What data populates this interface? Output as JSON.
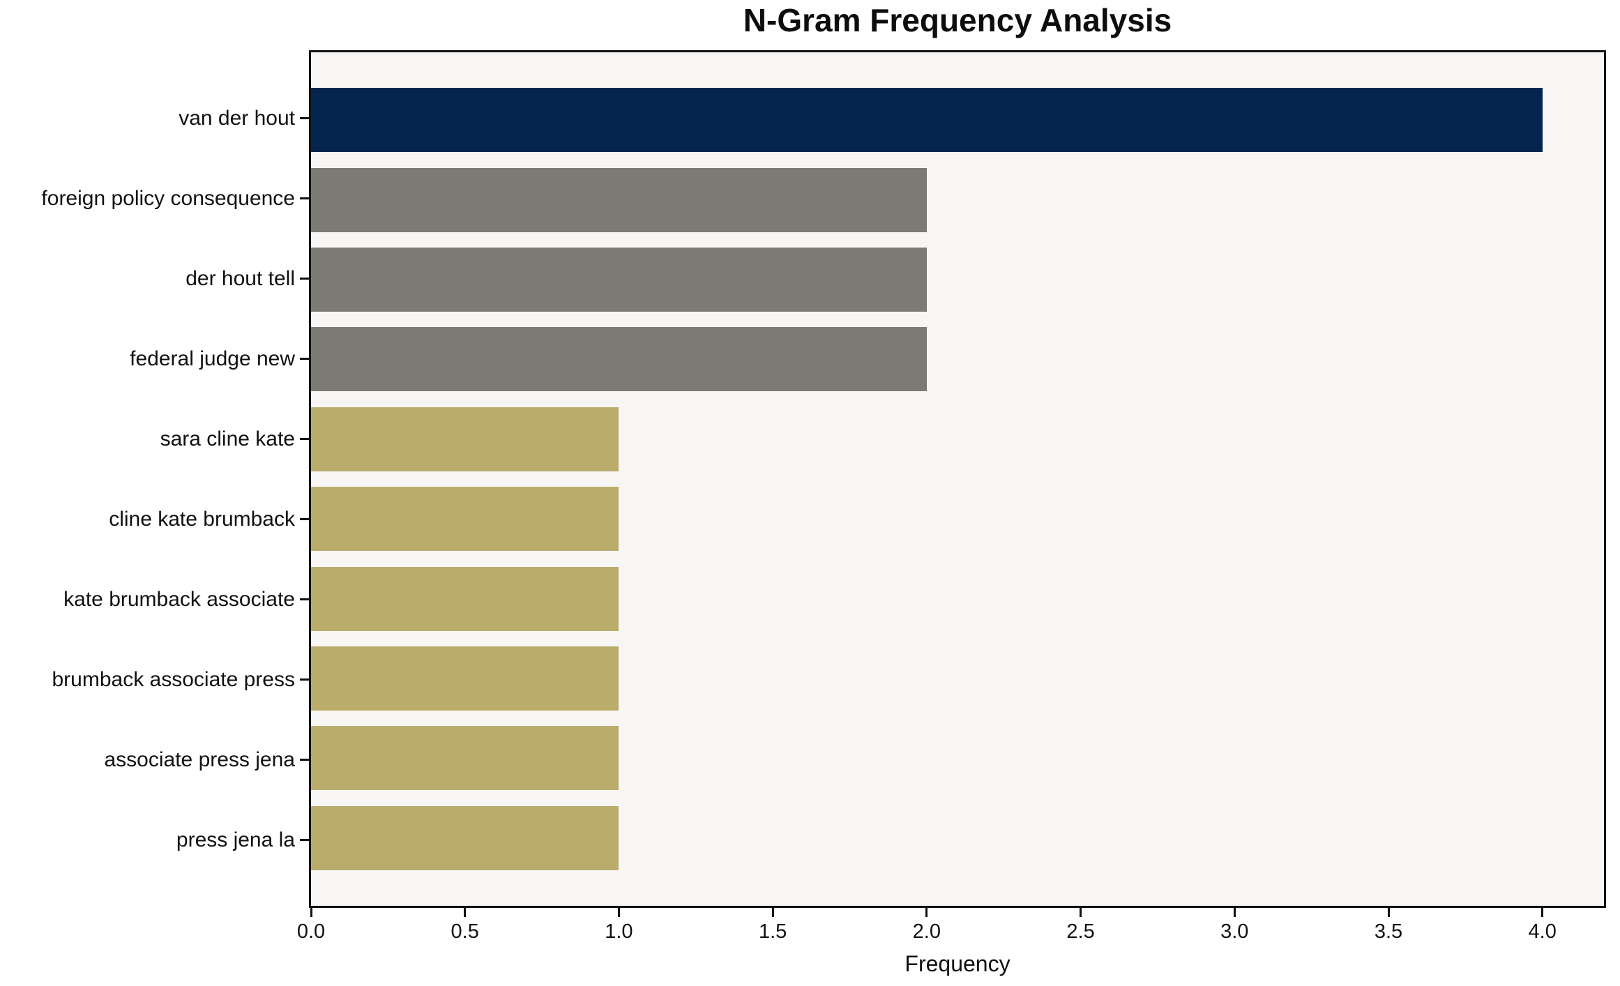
{
  "chart_data": {
    "type": "bar",
    "orientation": "horizontal",
    "title": "N-Gram Frequency Analysis",
    "xlabel": "Frequency",
    "ylabel": "",
    "categories": [
      "van der hout",
      "foreign policy consequence",
      "der hout tell",
      "federal judge new",
      "sara cline kate",
      "cline kate brumback",
      "kate brumback associate",
      "brumback associate press",
      "associate press jena",
      "press jena la"
    ],
    "values": [
      4,
      2,
      2,
      2,
      1,
      1,
      1,
      1,
      1,
      1
    ],
    "bar_colors": [
      "#04254e",
      "#7b7a75",
      "#7b7a75",
      "#7b7a75",
      "#baad6c",
      "#baad6c",
      "#baad6c",
      "#baad6c",
      "#baad6c",
      "#baad6c"
    ],
    "xlim": [
      0,
      4.2
    ],
    "x_ticks": [
      0,
      0.5,
      1,
      1.5,
      2,
      2.5,
      3,
      3.5,
      4
    ],
    "x_tick_labels": [
      "0.0",
      "0.5",
      "1.0",
      "1.5",
      "2.0",
      "2.5",
      "3.0",
      "3.5",
      "4.0"
    ],
    "grid": false,
    "legend": "none",
    "colors": {
      "plot_background": "#f7f6f5",
      "figure_background": "#ffffff",
      "spine": "#111111",
      "text": "#111111"
    }
  }
}
